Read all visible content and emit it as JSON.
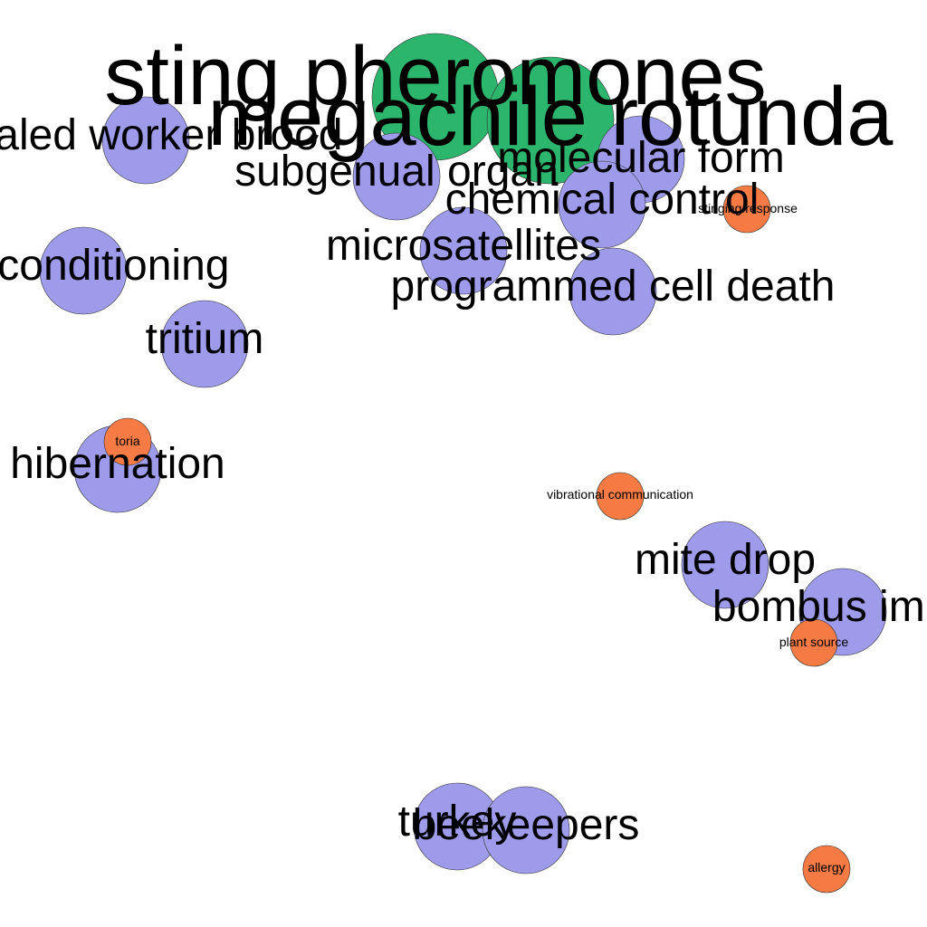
{
  "colors": {
    "background": "#ffffff",
    "green": "#2cb56c",
    "purple": "#9d9bea",
    "orange": "#f57a44",
    "label": "#000000"
  },
  "nodes": [
    {
      "id": "sting-pheromones",
      "label": "sting pheromones",
      "group": "green"
    },
    {
      "id": "megachile-rotundata",
      "label": "megachile rotunda",
      "group": "green"
    },
    {
      "id": "sealed-worker-brood",
      "label": "sealed worker brood",
      "group": "purple"
    },
    {
      "id": "subgenual-organ",
      "label": "subgenual organ",
      "group": "purple"
    },
    {
      "id": "molecular-form",
      "label": "molecular form",
      "group": "purple"
    },
    {
      "id": "chemical-control",
      "label": "chemical control",
      "group": "purple"
    },
    {
      "id": "microsatellites",
      "label": "microsatellites",
      "group": "purple"
    },
    {
      "id": "programmed-cell-death",
      "label": "programmed cell death",
      "group": "purple"
    },
    {
      "id": "pavlovian-conditioning",
      "label": "an conditioning",
      "group": "purple"
    },
    {
      "id": "tritium",
      "label": "tritium",
      "group": "purple"
    },
    {
      "id": "hibernation",
      "label": "hibernation",
      "group": "purple"
    },
    {
      "id": "mite-drop",
      "label": "mite drop",
      "group": "purple"
    },
    {
      "id": "bombus-impatiens",
      "label": "bombus impa",
      "group": "purple"
    },
    {
      "id": "turkey",
      "label": "turkey",
      "group": "purple"
    },
    {
      "id": "beekeepers",
      "label": "beekeepers",
      "group": "purple"
    },
    {
      "id": "stinging-response",
      "label": "stinging response",
      "group": "orange"
    },
    {
      "id": "toria",
      "label": "toria",
      "group": "orange"
    },
    {
      "id": "vibrational-communication",
      "label": "vibrational communication",
      "group": "orange"
    },
    {
      "id": "plant-source",
      "label": "plant source",
      "group": "orange"
    },
    {
      "id": "allergy",
      "label": "allergy",
      "group": "orange"
    }
  ]
}
